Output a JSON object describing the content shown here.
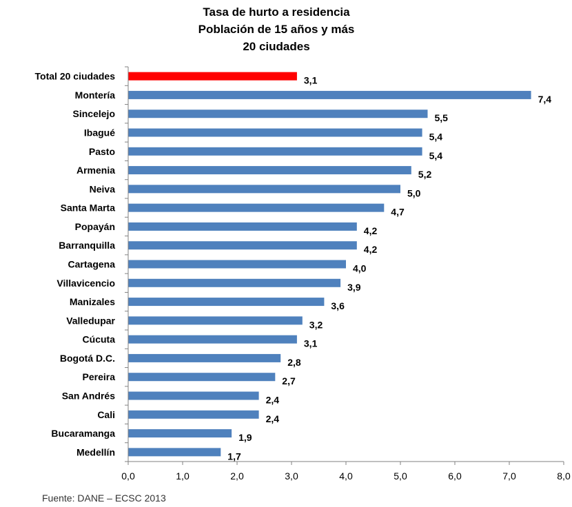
{
  "chart_data": {
    "type": "bar",
    "orientation": "horizontal",
    "title": [
      "Tasa de hurto a residencia",
      "Población de 15 años y más",
      "20 ciudades"
    ],
    "categories": [
      "Total 20 ciudades",
      "Montería",
      "Sincelejo",
      "Ibagué",
      "Pasto",
      "Armenia",
      "Neiva",
      "Santa Marta",
      "Popayán",
      "Barranquilla",
      "Cartagena",
      "Villavicencio",
      "Manizales",
      "Valledupar",
      "Cúcuta",
      "Bogotá D.C.",
      "Pereira",
      "San Andrés",
      "Cali",
      "Bucaramanga",
      "Medellín"
    ],
    "values": [
      3.1,
      7.4,
      5.5,
      5.4,
      5.4,
      5.2,
      5.0,
      4.7,
      4.2,
      4.2,
      4.0,
      3.9,
      3.6,
      3.2,
      3.1,
      2.8,
      2.7,
      2.4,
      2.4,
      1.9,
      1.7
    ],
    "value_labels": [
      "3,1",
      "7,4",
      "5,5",
      "5,4",
      "5,4",
      "5,2",
      "5,0",
      "4,7",
      "4,2",
      "4,2",
      "4,0",
      "3,9",
      "3,6",
      "3,2",
      "3,1",
      "2,8",
      "2,7",
      "2,4",
      "2,4",
      "1,9",
      "1,7"
    ],
    "xlim": [
      0,
      8
    ],
    "x_ticks": [
      "0,0",
      "1,0",
      "2,0",
      "3,0",
      "4,0",
      "5,0",
      "6,0",
      "7,0",
      "8,0"
    ],
    "grid": false,
    "colors": {
      "bar": "#4F81BD",
      "highlight": "#FF0000"
    },
    "highlight_category": "Total 20 ciudades"
  },
  "source_note": "Fuente: DANE – ECSC 2013"
}
